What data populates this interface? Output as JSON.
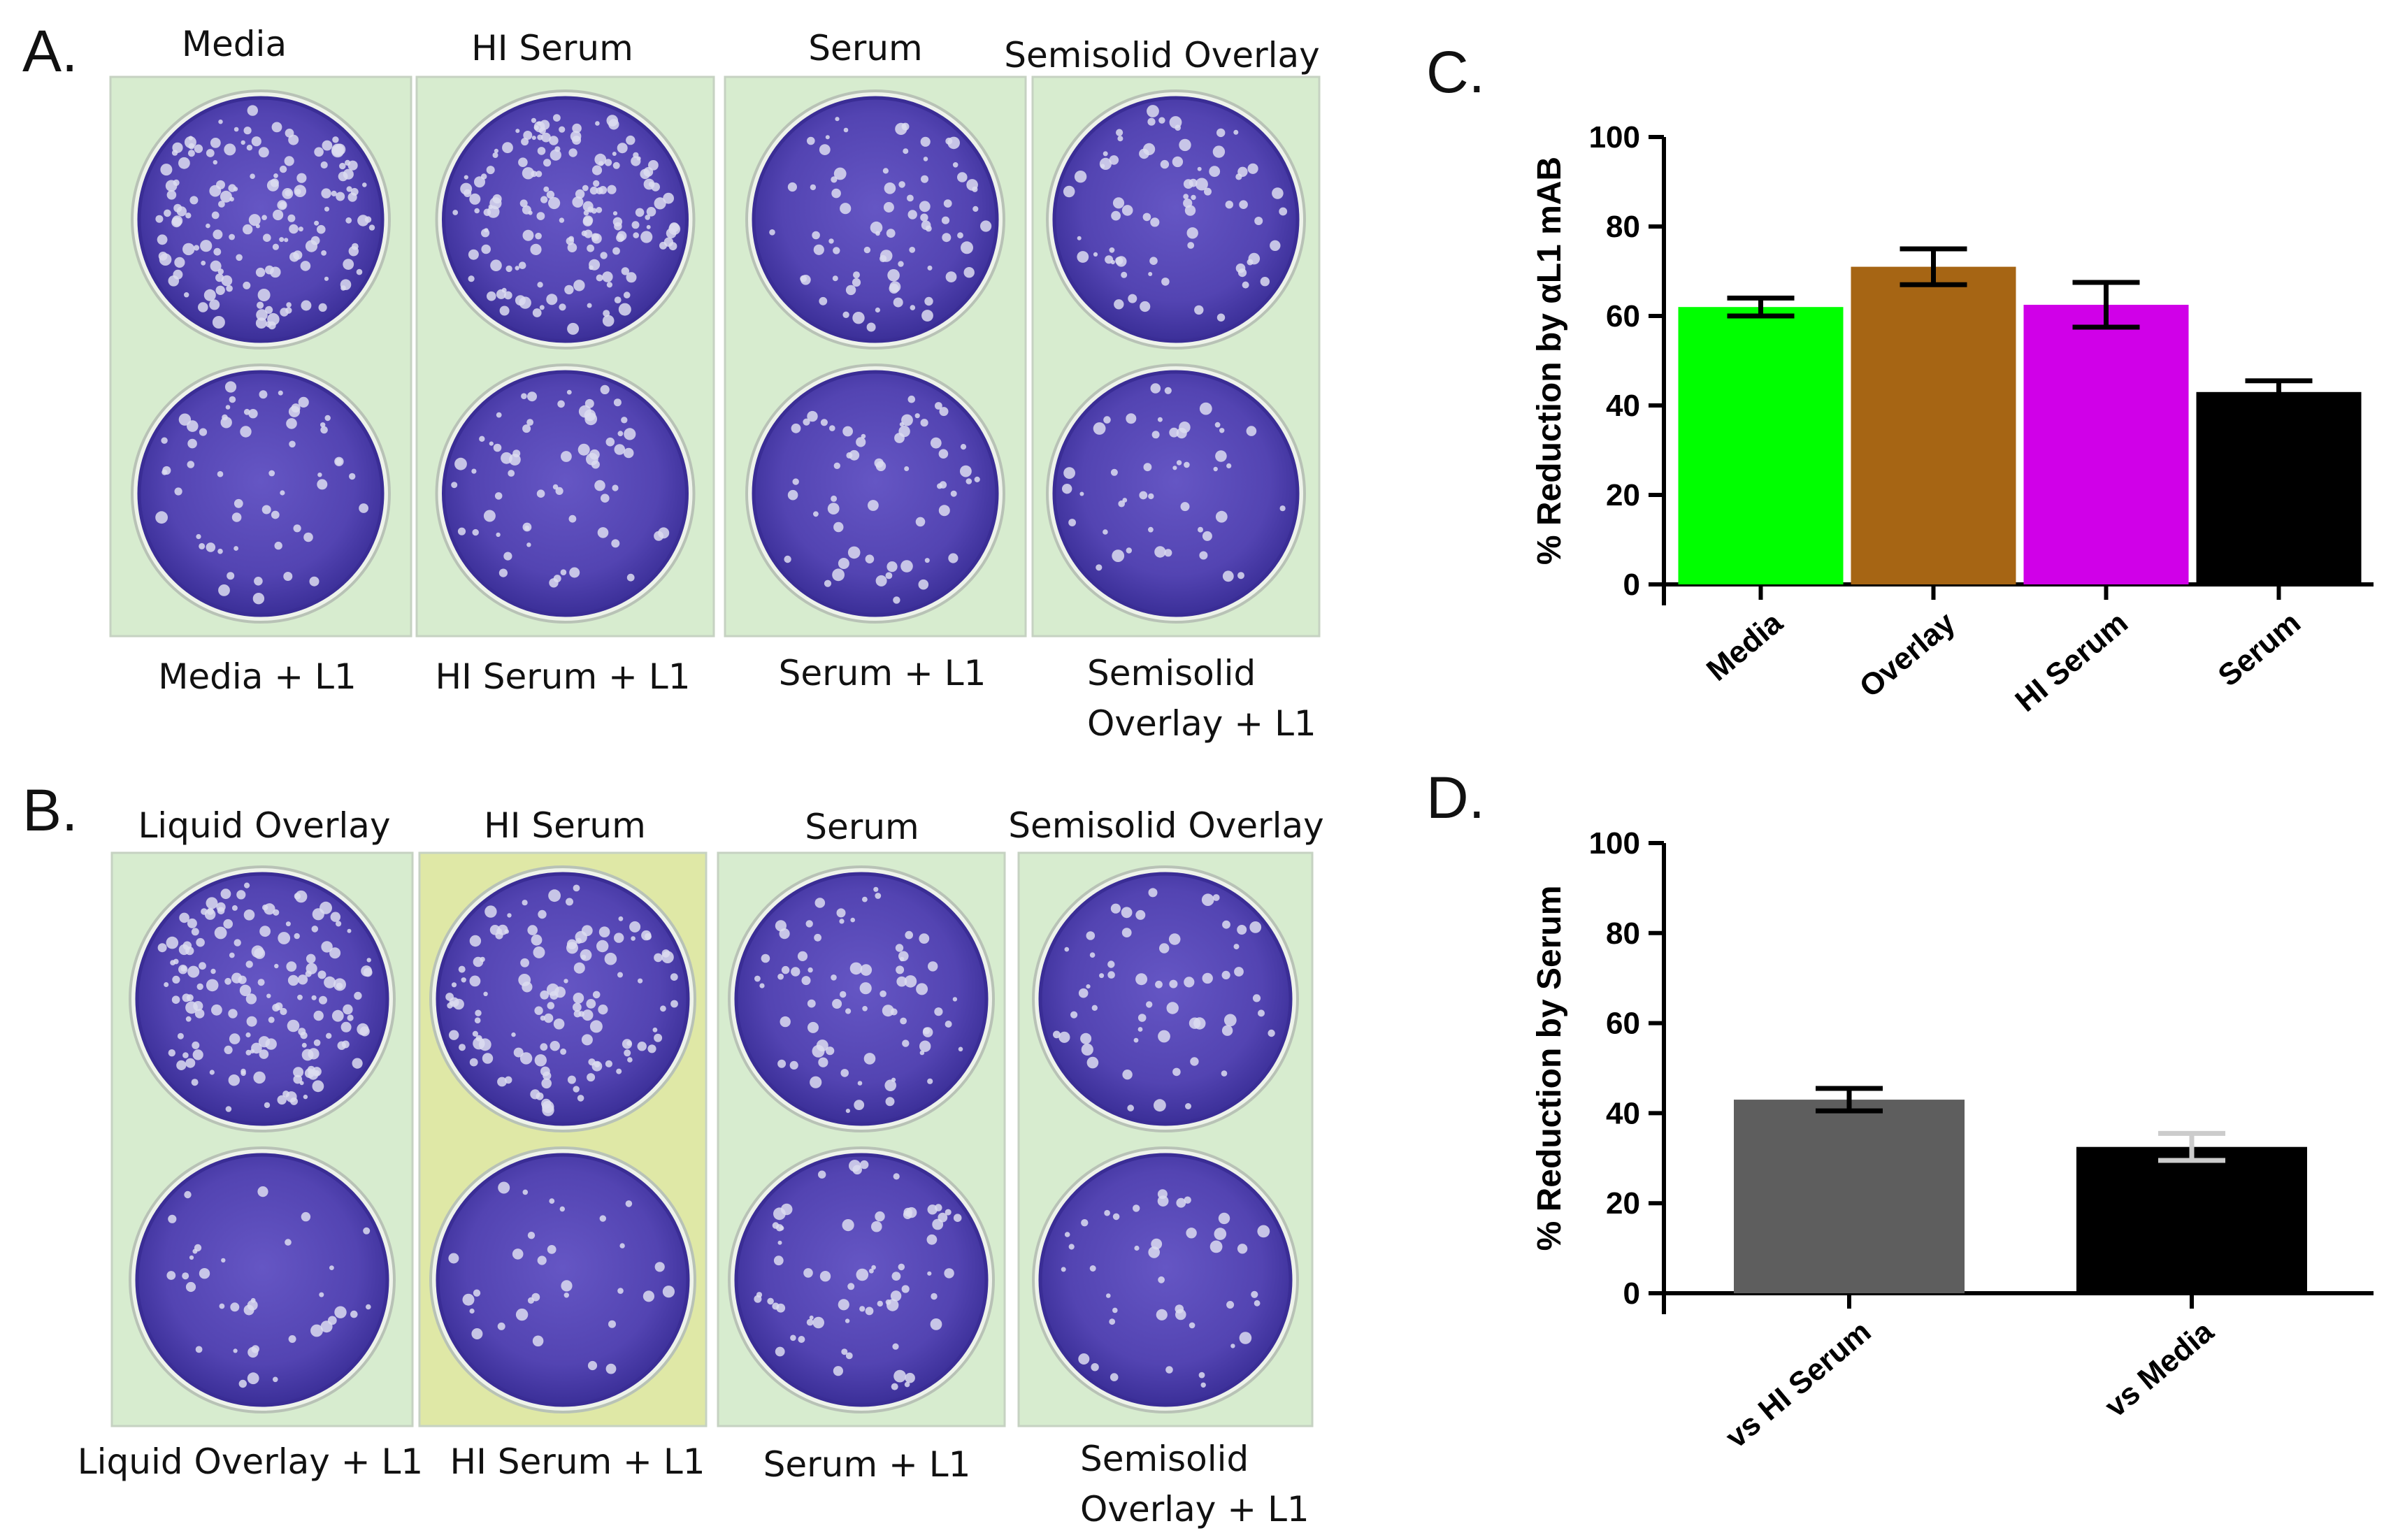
{
  "panels": {
    "A": {
      "letter": "A.",
      "top_labels": [
        "Media",
        "HI Serum",
        "Serum",
        "Semisolid Overlay"
      ],
      "bottom_labels": [
        [
          "Media + L1"
        ],
        [
          "HI Serum + L1"
        ],
        [
          "Serum + L1"
        ],
        [
          "Semisolid",
          "Overlay + L1"
        ]
      ]
    },
    "B": {
      "letter": "B.",
      "top_labels": [
        "Liquid Overlay",
        "HI Serum",
        "Serum",
        "Semisolid Overlay"
      ],
      "bottom_labels": [
        [
          "Liquid Overlay + L1"
        ],
        [
          "HI Serum + L1"
        ],
        [
          "Serum + L1"
        ],
        [
          "Semisolid",
          "Overlay + L1"
        ]
      ]
    },
    "C": {
      "letter": "C."
    },
    "D": {
      "letter": "D."
    }
  },
  "plate_colors": {
    "plate_bg": "#d7eccf",
    "hi_serum_bg_B": "#dfe8a6",
    "well": "#5a48b8",
    "well_dark": "#3a2d95",
    "plaque": "#dcdcf0"
  },
  "chart_data": [
    {
      "type": "bar",
      "panel": "C",
      "categories": [
        "Media",
        "Overlay",
        "HI Serum",
        "Serum"
      ],
      "values": [
        62,
        71,
        62.5,
        43
      ],
      "error": [
        2,
        4,
        5,
        2.5
      ],
      "colors": [
        "#00ff00",
        "#a66514",
        "#d000e8",
        "#000000"
      ],
      "title": "",
      "xlabel": "",
      "ylabel": "% Reduction by αL1 mAB",
      "ylim": [
        0,
        100
      ],
      "yticks": [
        0,
        20,
        40,
        60,
        80,
        100
      ],
      "grid": false
    },
    {
      "type": "bar",
      "panel": "D",
      "categories": [
        "vs HI Serum",
        "vs Media"
      ],
      "values": [
        43,
        32.5
      ],
      "error": [
        2.5,
        3
      ],
      "colors": [
        "#5e5e5e",
        "#000000"
      ],
      "error_colors": [
        "#000000",
        "#cccccc"
      ],
      "title": "",
      "xlabel": "",
      "ylabel": "% Reduction by Serum",
      "ylim": [
        0,
        100
      ],
      "yticks": [
        0,
        20,
        40,
        60,
        80,
        100
      ],
      "grid": false
    }
  ]
}
